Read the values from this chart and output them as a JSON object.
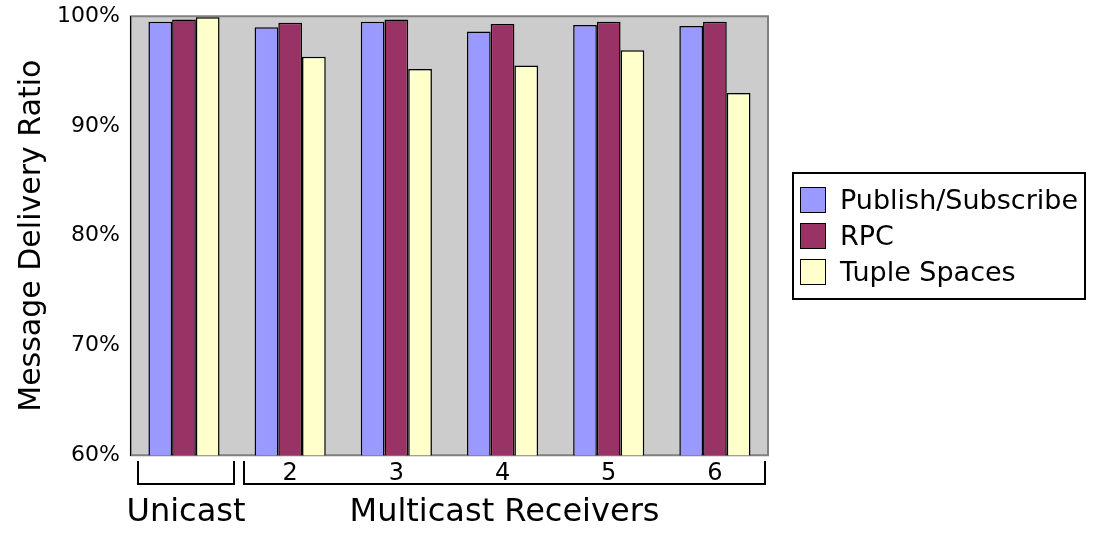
{
  "chart_data": {
    "type": "bar",
    "categories": [
      null,
      "2",
      "3",
      "4",
      "5",
      "6"
    ],
    "series": [
      {
        "name": "Publish/Subscribe",
        "color": "#9999ff",
        "values": [
          99.5,
          99.0,
          99.5,
          98.6,
          99.2,
          99.1
        ]
      },
      {
        "name": "RPC",
        "color": "#993366",
        "values": [
          99.7,
          99.4,
          99.7,
          99.3,
          99.5,
          99.5
        ]
      },
      {
        "name": "Tuple Spaces",
        "color": "#ffffcc",
        "values": [
          99.9,
          96.3,
          95.2,
          95.5,
          96.9,
          93.0
        ]
      }
    ],
    "ylabel": "Message Delivery Ratio",
    "xlabel": "Multicast Receivers",
    "annotations": [
      "Unicast"
    ],
    "ylim": [
      60,
      100
    ],
    "yticks": [
      {
        "value": 60,
        "label": "60%"
      },
      {
        "value": 70,
        "label": "70%"
      },
      {
        "value": 80,
        "label": "80%"
      },
      {
        "value": 90,
        "label": "90%"
      },
      {
        "value": 100,
        "label": "100%"
      }
    ],
    "grid": false,
    "legend": "right"
  }
}
